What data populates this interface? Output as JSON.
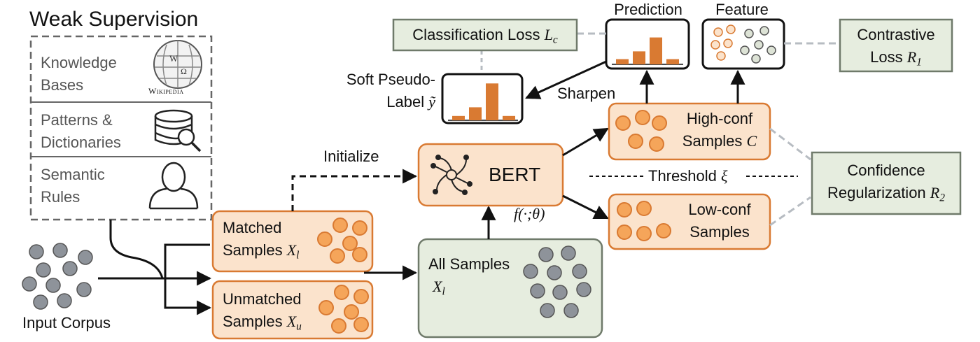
{
  "weak_supervision": {
    "title": "Weak Supervision",
    "sources": [
      {
        "label_1": "Knowledge",
        "label_2": "Bases",
        "icon": "wikipedia-globe-icon",
        "icon_caption": "Wikipedia"
      },
      {
        "label_1": "Patterns &",
        "label_2": "Dictionaries",
        "icon": "database-search-icon"
      },
      {
        "label_1": "Semantic",
        "label_2": "Rules",
        "icon": "person-icon"
      }
    ]
  },
  "input_corpus": {
    "label": "Input Corpus"
  },
  "matched": {
    "label_1": "Matched",
    "label_2": "Samples",
    "symbol": "X",
    "symbol_sub": "l"
  },
  "unmatched": {
    "label_1": "Unmatched",
    "label_2": "Samples",
    "symbol": "X",
    "symbol_sub": "u"
  },
  "all_samples": {
    "label_1": "All Samples",
    "symbol": "X",
    "symbol_sub": "l"
  },
  "bert": {
    "label": "BERT",
    "function": "f(·;θ)",
    "initialize_label": "Initialize"
  },
  "high_conf": {
    "label_1": "High-conf",
    "label_2": "Samples",
    "symbol": "C"
  },
  "low_conf": {
    "label_1": "Low-conf",
    "label_2": "Samples"
  },
  "threshold": {
    "label": "Threshold",
    "symbol": "ξ"
  },
  "soft_pseudo_label": {
    "label_1": "Soft Pseudo-",
    "label_2": "Label",
    "symbol": "ỹ",
    "bars": [
      0.1,
      0.3,
      0.85,
      0.1
    ]
  },
  "prediction": {
    "title": "Prediction",
    "bars": [
      0.12,
      0.3,
      0.62,
      0.12
    ]
  },
  "sharpen": {
    "label": "Sharpen"
  },
  "feature": {
    "title": "Feature"
  },
  "classification_loss": {
    "label": "Classification Loss",
    "symbol": "L",
    "symbol_sub": "c"
  },
  "contrastive_loss": {
    "label_1": "Contrastive",
    "label_2": "Loss",
    "symbol": "R",
    "symbol_sub": "1"
  },
  "confidence_regularization": {
    "label_1": "Confidence",
    "label_2": "Regularization",
    "symbol": "R",
    "symbol_sub": "2"
  },
  "colors": {
    "orange": "#d97a32",
    "orange_fill": "#fbe3cc",
    "gray_dot": "#8e939a",
    "green_fill": "#e6eddf",
    "green_border": "#6f7a6a",
    "dash_gray": "#b7bcc2"
  }
}
